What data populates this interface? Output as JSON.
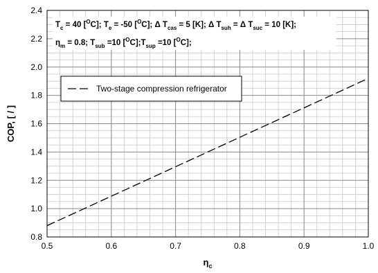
{
  "chart_data": {
    "type": "line",
    "xlabel": "η",
    "xlabel_sub": "c",
    "ylabel": "COP, [ / ]",
    "xlim": [
      0.5,
      1.0
    ],
    "ylim": [
      0.8,
      2.4
    ],
    "x_ticks": [
      "0.5",
      "0.6",
      "0.7",
      "0.8",
      "0.9",
      "1.0"
    ],
    "y_ticks": [
      "0.8",
      "1.0",
      "1.2",
      "1.4",
      "1.6",
      "1.8",
      "2.0",
      "2.2",
      "2.4"
    ],
    "grid": true,
    "legend_position": "upper-left",
    "series": [
      {
        "name": "Two-stage compression refrigerator",
        "line_style": "dashed",
        "color": "#000000",
        "x": [
          0.5,
          1.0
        ],
        "y": [
          0.88,
          1.92
        ]
      }
    ],
    "annotations": {
      "line1": [
        {
          "text": "T",
          "sub": "c",
          "sup": ""
        },
        {
          "text": " = 40 [",
          "sub": "",
          "sup": "O"
        },
        {
          "text": "C]; T",
          "sub": "e",
          "sup": ""
        },
        {
          "text": " = -50 [",
          "sub": "",
          "sup": "O"
        },
        {
          "text": "C]; Δ  T",
          "sub": "cas",
          "sup": ""
        },
        {
          "text": " = 5 [K]; Δ  T",
          "sub": "suh",
          "sup": ""
        },
        {
          "text": " =  Δ  T",
          "sub": "suc",
          "sup": ""
        },
        {
          "text": " = 10 [K];",
          "sub": "",
          "sup": ""
        }
      ],
      "line2": [
        {
          "text": "η",
          "sub": "m",
          "sup": ""
        },
        {
          "text": " = 0.8; T",
          "sub": "sub",
          "sup": ""
        },
        {
          "text": " =10 [",
          "sub": "",
          "sup": "O"
        },
        {
          "text": "C];T",
          "sub": "sup",
          "sup": ""
        },
        {
          "text": " =10 [",
          "sub": "",
          "sup": "O"
        },
        {
          "text": "C];",
          "sub": "",
          "sup": ""
        }
      ]
    }
  }
}
